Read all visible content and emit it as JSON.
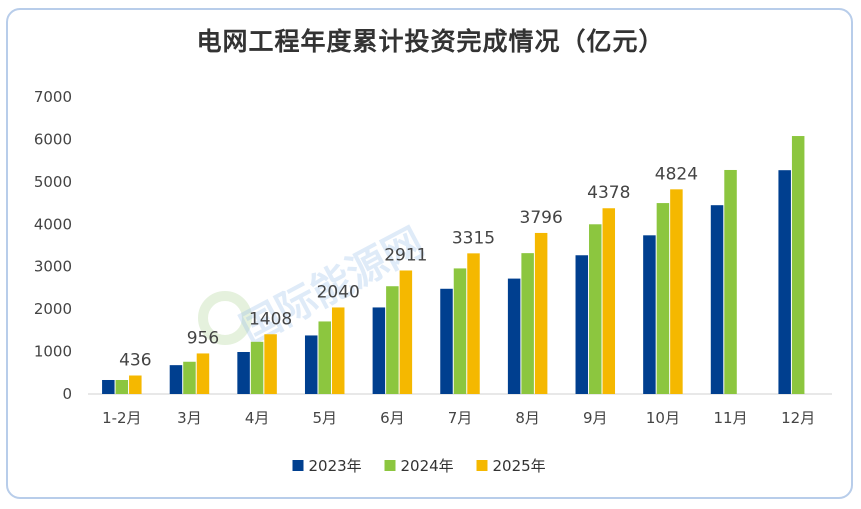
{
  "chart_data": {
    "type": "bar",
    "title": "电网工程年度累计投资完成情况（亿元）",
    "xlabel": "",
    "ylabel": "",
    "ylim": [
      0,
      7000
    ],
    "yticks": [
      "0",
      "1000",
      "2000",
      "3000",
      "4000",
      "5000",
      "6000",
      "7000"
    ],
    "categories": [
      "1-2月",
      "3月",
      "4月",
      "5月",
      "6月",
      "7月",
      "8月",
      "9月",
      "10月",
      "11月",
      "12月"
    ],
    "series": [
      {
        "name": "2023年",
        "color": "#003f8f",
        "values": [
          330,
          680,
          990,
          1380,
          2040,
          2480,
          2720,
          3270,
          3740,
          4450,
          5275
        ]
      },
      {
        "name": "2024年",
        "color": "#8cc63f",
        "values": [
          330,
          760,
          1230,
          1710,
          2540,
          2960,
          3320,
          4000,
          4500,
          5280,
          6080
        ]
      },
      {
        "name": "2025年",
        "color": "#f5b800",
        "values": [
          436,
          956,
          1408,
          2040,
          2911,
          3315,
          3796,
          4378,
          4824,
          null,
          null
        ],
        "data_labels": [
          "436",
          "956",
          "1408",
          "2040",
          "2911",
          "3315",
          "3796",
          "4378",
          "4824"
        ]
      }
    ],
    "legend": "bottom-center",
    "grid": false
  },
  "watermark": "国际能源网"
}
